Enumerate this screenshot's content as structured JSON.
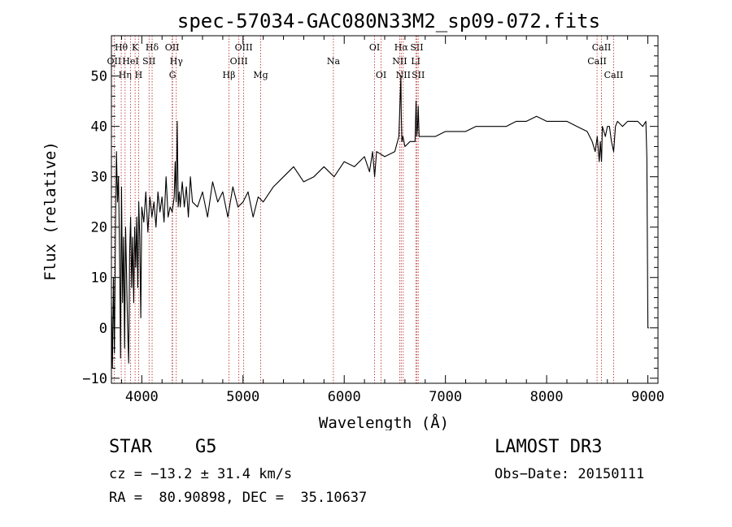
{
  "chart_data": {
    "type": "line",
    "title": "spec-57034-GAC080N33M2_sp09-072.fits",
    "xlabel": "Wavelength (Å)",
    "ylabel": "Flux (relative)",
    "xlim": [
      3700,
      9100
    ],
    "ylim": [
      -11,
      58
    ],
    "xticks": [
      4000,
      5000,
      6000,
      7000,
      8000,
      9000
    ],
    "yticks": [
      -10,
      0,
      10,
      20,
      30,
      40,
      50
    ],
    "grid": false,
    "series": [
      {
        "name": "flux",
        "x": [
          3700,
          3710,
          3720,
          3730,
          3740,
          3750,
          3760,
          3770,
          3780,
          3790,
          3800,
          3810,
          3820,
          3830,
          3840,
          3850,
          3860,
          3870,
          3880,
          3890,
          3900,
          3910,
          3920,
          3930,
          3940,
          3950,
          3960,
          3970,
          3980,
          3990,
          4000,
          4020,
          4040,
          4060,
          4080,
          4100,
          4120,
          4140,
          4160,
          4180,
          4200,
          4220,
          4240,
          4260,
          4280,
          4300,
          4320,
          4330,
          4340,
          4350,
          4360,
          4370,
          4380,
          4400,
          4420,
          4440,
          4460,
          4480,
          4500,
          4550,
          4600,
          4650,
          4700,
          4750,
          4800,
          4850,
          4900,
          4950,
          5000,
          5050,
          5100,
          5150,
          5200,
          5300,
          5400,
          5500,
          5600,
          5700,
          5800,
          5900,
          6000,
          6100,
          6200,
          6250,
          6280,
          6300,
          6320,
          6400,
          6500,
          6540,
          6560,
          6563,
          6570,
          6580,
          6600,
          6650,
          6700,
          6710,
          6717,
          6725,
          6731,
          6740,
          6800,
          6900,
          7000,
          7100,
          7200,
          7300,
          7400,
          7500,
          7600,
          7700,
          7800,
          7900,
          8000,
          8100,
          8200,
          8300,
          8400,
          8450,
          8480,
          8500,
          8520,
          8530,
          8542,
          8550,
          8580,
          8600,
          8620,
          8640,
          8662,
          8680,
          8700,
          8750,
          8800,
          8850,
          8900,
          8950,
          8980,
          8990,
          9000,
          9005,
          9010
        ],
        "y": [
          5,
          -8,
          10,
          -5,
          20,
          35,
          25,
          30,
          15,
          -6,
          28,
          5,
          18,
          -4,
          20,
          10,
          0,
          -7,
          15,
          22,
          8,
          18,
          5,
          20,
          12,
          22,
          8,
          25,
          18,
          2,
          24,
          21,
          27,
          19,
          26,
          22,
          25,
          20,
          27,
          23,
          26,
          21,
          30,
          22,
          24,
          23,
          26,
          33,
          25,
          41,
          24,
          27,
          24,
          29,
          24,
          28,
          22,
          30,
          25,
          24,
          27,
          22,
          29,
          25,
          27,
          22,
          28,
          24,
          25,
          27,
          22,
          26,
          25,
          28,
          30,
          32,
          29,
          30,
          32,
          30,
          33,
          32,
          34,
          31,
          35,
          30,
          35,
          34,
          35,
          38,
          50,
          43,
          37,
          38,
          36,
          37,
          37,
          45,
          38,
          40,
          44,
          38,
          38,
          38,
          39,
          39,
          39,
          40,
          40,
          40,
          40,
          41,
          41,
          42,
          41,
          41,
          41,
          40,
          39,
          37,
          35,
          38,
          33,
          37,
          33,
          40,
          38,
          40,
          40,
          37,
          35,
          40,
          41,
          40,
          41,
          41,
          41,
          40,
          41,
          34,
          0,
          0,
          0
        ]
      }
    ],
    "line_labels": [
      "Hθ",
      "OII",
      "Hη",
      "HeI",
      "K",
      "H",
      "SII",
      "Hδ",
      "OII",
      "Hγ",
      "G",
      "Hβ",
      "OIII",
      "OIII",
      "Mg",
      "Na",
      "OI",
      "OI",
      "Hα",
      "NII",
      "NII",
      "SII",
      "LI",
      "SII",
      "CaII",
      "CaII",
      "CaII"
    ],
    "lines": [
      {
        "label": "Hθ",
        "wl": 3797,
        "tier": 0
      },
      {
        "label": "OII",
        "wl": 3727,
        "tier": 1
      },
      {
        "label": "Hη",
        "wl": 3835,
        "tier": 2
      },
      {
        "label": "HeI",
        "wl": 3889,
        "tier": 1
      },
      {
        "label": "K",
        "wl": 3934,
        "tier": 0
      },
      {
        "label": "H",
        "wl": 3969,
        "tier": 2
      },
      {
        "label": "SII",
        "wl": 4072,
        "tier": 1
      },
      {
        "label": "Hδ",
        "wl": 4102,
        "tier": 0
      },
      {
        "label": "OII",
        "wl": 4300,
        "tier": 0
      },
      {
        "label": "Hγ",
        "wl": 4341,
        "tier": 1
      },
      {
        "label": "G",
        "wl": 4304,
        "tier": 2
      },
      {
        "label": "Hβ",
        "wl": 4861,
        "tier": 2
      },
      {
        "label": "OIII",
        "wl": 4959,
        "tier": 1
      },
      {
        "label": "OIII",
        "wl": 5007,
        "tier": 0
      },
      {
        "label": "Mg",
        "wl": 5175,
        "tier": 2
      },
      {
        "label": "Na",
        "wl": 5893,
        "tier": 1
      },
      {
        "label": "OI",
        "wl": 6300,
        "tier": 0
      },
      {
        "label": "OI",
        "wl": 6364,
        "tier": 2
      },
      {
        "label": "Hα",
        "wl": 6563,
        "tier": 0
      },
      {
        "label": "NII",
        "wl": 6548,
        "tier": 1
      },
      {
        "label": "NII",
        "wl": 6583,
        "tier": 2
      },
      {
        "label": "SII",
        "wl": 6717,
        "tier": 0
      },
      {
        "label": "LI",
        "wl": 6707,
        "tier": 1
      },
      {
        "label": "SII",
        "wl": 6731,
        "tier": 2
      },
      {
        "label": "CaII",
        "wl": 8542,
        "tier": 0
      },
      {
        "label": "CaII",
        "wl": 8498,
        "tier": 1
      },
      {
        "label": "CaII",
        "wl": 8662,
        "tier": 2
      }
    ]
  },
  "info": {
    "class_line": "STAR    G5",
    "survey": "LAMOST DR3",
    "cz": "cz = −13.2 ± 31.4 km/s",
    "obs_date": "Obs−Date: 20150111",
    "coords": "RA =  80.90898, DEC =  35.10637"
  }
}
